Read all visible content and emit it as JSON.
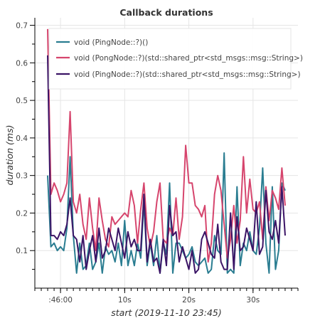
{
  "chart_data": {
    "type": "line",
    "title": "Callback durations",
    "xlabel": "start (2019-11-10 23:45)",
    "ylabel": "duration (ms)",
    "x_tick_labels": [
      ":46:00",
      "10s",
      "20s",
      "30s"
    ],
    "x_tick_values": [
      50,
      60,
      70,
      80
    ],
    "y_tick_labels": [
      "0.1",
      "0.2",
      "0.3",
      "0.4",
      "0.5",
      "0.6",
      "0.7"
    ],
    "y_tick_values": [
      0.1,
      0.2,
      0.3,
      0.4,
      0.5,
      0.6,
      0.7
    ],
    "xlim": [
      46.0,
      87.0
    ],
    "ylim": [
      0.0,
      0.72
    ],
    "grid": true,
    "legend_position": "top-right",
    "series": [
      {
        "name": "void (PingNode::?)()",
        "color": "#2a7d91",
        "x": [
          48,
          48.5,
          49,
          49.5,
          50,
          50.5,
          51,
          51.5,
          52,
          52.5,
          53,
          53.5,
          54,
          54.5,
          55,
          55.5,
          56,
          56.5,
          57,
          57.5,
          58,
          58.5,
          59,
          59.5,
          60,
          60.5,
          61,
          61.5,
          62,
          62.5,
          63,
          63.5,
          64,
          64.5,
          65,
          65.5,
          66,
          66.5,
          67,
          67.5,
          68,
          68.5,
          69,
          69.5,
          70,
          70.5,
          71,
          71.5,
          72,
          72.5,
          73,
          73.5,
          74,
          74.5,
          75,
          75.5,
          76,
          76.5,
          77,
          77.5,
          78,
          78.5,
          79,
          79.5,
          80,
          80.5,
          81,
          81.5,
          82,
          82.5,
          83,
          83.5,
          84,
          84.5,
          85
        ],
        "y": [
          0.3,
          0.11,
          0.12,
          0.1,
          0.11,
          0.1,
          0.16,
          0.35,
          0.14,
          0.04,
          0.12,
          0.05,
          0.06,
          0.12,
          0.05,
          0.07,
          0.12,
          0.04,
          0.11,
          0.09,
          0.1,
          0.07,
          0.12,
          0.06,
          0.18,
          0.06,
          0.1,
          0.06,
          0.12,
          0.08,
          0.23,
          0.06,
          0.12,
          0.06,
          0.14,
          0.04,
          0.12,
          0.09,
          0.28,
          0.04,
          0.12,
          0.12,
          0.1,
          0.08,
          0.09,
          0.11,
          0.07,
          0.06,
          0.07,
          0.08,
          0.04,
          0.05,
          0.14,
          0.1,
          0.09,
          0.36,
          0.04,
          0.05,
          0.04,
          0.27,
          0.06,
          0.12,
          0.1,
          0.15,
          0.1,
          0.09,
          0.16,
          0.32,
          0.12,
          0.04,
          0.27,
          0.05,
          0.1,
          0.28,
          0.26
        ]
      },
      {
        "name": "void (PongNode::?)(std::shared_ptr<std_msgs::msg::String>)",
        "color": "#d6456d",
        "x": [
          48,
          48.5,
          49,
          49.5,
          50,
          50.5,
          51,
          51.5,
          52,
          52.5,
          53,
          53.5,
          54,
          54.5,
          55,
          55.5,
          56,
          56.5,
          57,
          57.5,
          58,
          58.5,
          59,
          59.5,
          60,
          60.5,
          61,
          61.5,
          62,
          62.5,
          63,
          63.5,
          64,
          64.5,
          65,
          65.5,
          66,
          66.5,
          67,
          67.5,
          68,
          68.5,
          69,
          69.5,
          70,
          70.5,
          71,
          71.5,
          72,
          72.5,
          73,
          73.5,
          74,
          74.5,
          75,
          75.5,
          76,
          76.5,
          77,
          77.5,
          78,
          78.5,
          79,
          79.5,
          80,
          80.5,
          81,
          81.5,
          82,
          82.5,
          83,
          83.5,
          84,
          84.5,
          85
        ],
        "y": [
          0.69,
          0.25,
          0.28,
          0.26,
          0.23,
          0.25,
          0.28,
          0.47,
          0.23,
          0.2,
          0.25,
          0.17,
          0.13,
          0.24,
          0.16,
          0.1,
          0.24,
          0.18,
          0.13,
          0.11,
          0.19,
          0.17,
          0.18,
          0.19,
          0.2,
          0.19,
          0.26,
          0.22,
          0.12,
          0.21,
          0.28,
          0.16,
          0.11,
          0.15,
          0.23,
          0.28,
          0.13,
          0.12,
          0.16,
          0.14,
          0.24,
          0.13,
          0.19,
          0.38,
          0.28,
          0.28,
          0.22,
          0.21,
          0.19,
          0.22,
          0.07,
          0.12,
          0.25,
          0.3,
          0.26,
          0.17,
          0.08,
          0.13,
          0.22,
          0.12,
          0.18,
          0.35,
          0.2,
          0.29,
          0.21,
          0.2,
          0.23,
          0.13,
          0.27,
          0.18,
          0.26,
          0.24,
          0.21,
          0.32,
          0.22
        ]
      },
      {
        "name": "void (PingNode::?)(std::shared_ptr<std_msgs::msg::String>)",
        "color": "#3b1466",
        "x": [
          48,
          48.5,
          49,
          49.5,
          50,
          50.5,
          51,
          51.5,
          52,
          52.5,
          53,
          53.5,
          54,
          54.5,
          55,
          55.5,
          56,
          56.5,
          57,
          57.5,
          58,
          58.5,
          59,
          59.5,
          60,
          60.5,
          61,
          61.5,
          62,
          62.5,
          63,
          63.5,
          64,
          64.5,
          65,
          65.5,
          66,
          66.5,
          67,
          67.5,
          68,
          68.5,
          69,
          69.5,
          70,
          70.5,
          71,
          71.5,
          72,
          72.5,
          73,
          73.5,
          74,
          74.5,
          75,
          75.5,
          76,
          76.5,
          77,
          77.5,
          78,
          78.5,
          79,
          79.5,
          80,
          80.5,
          81,
          81.5,
          82,
          82.5,
          83,
          83.5,
          84,
          84.5,
          85
        ],
        "y": [
          0.62,
          0.14,
          0.14,
          0.13,
          0.15,
          0.14,
          0.17,
          0.24,
          0.14,
          0.13,
          0.07,
          0.14,
          0.05,
          0.1,
          0.14,
          0.07,
          0.16,
          0.08,
          0.1,
          0.16,
          0.13,
          0.1,
          0.16,
          0.12,
          0.08,
          0.15,
          0.11,
          0.13,
          0.1,
          0.1,
          0.25,
          0.07,
          0.13,
          0.07,
          0.08,
          0.04,
          0.13,
          0.06,
          0.22,
          0.14,
          0.15,
          0.07,
          0.11,
          0.08,
          0.05,
          0.1,
          0.04,
          0.05,
          0.13,
          0.15,
          0.12,
          0.09,
          0.08,
          0.17,
          0.07,
          0.05,
          0.05,
          0.2,
          0.05,
          0.19,
          0.1,
          0.11,
          0.16,
          0.13,
          0.1,
          0.23,
          0.09,
          0.11,
          0.26,
          0.15,
          0.13,
          0.18,
          0.12,
          0.27,
          0.14
        ]
      }
    ]
  }
}
